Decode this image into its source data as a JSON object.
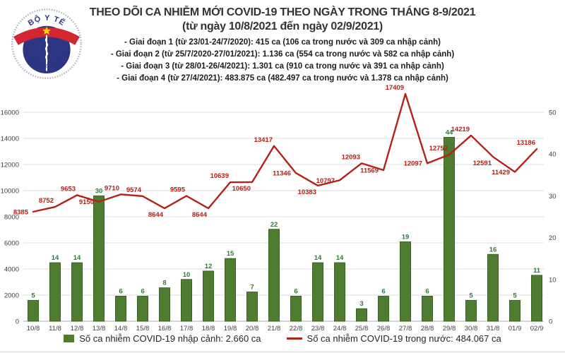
{
  "logo": {
    "top_text": "BỘ Y TẾ",
    "bottom_text": "MINISTRY OF HEALTH"
  },
  "header": {
    "title_line1": "THEO DÕI CA NHIỄM MỚI COVID-19 THEO NGÀY TRONG THÁNG 8-9/2021",
    "title_line2": "(từ ngày 10/8/2021 đến ngày 02/9/2021)",
    "phases": [
      "- Giai đoạn 1 (từ 23/01-24/7/2020): 415 ca (106 ca trong nước và 309 ca nhập cảnh)",
      "- Giai đoạn 2 (từ 25/7/2020-27/01/2021): 1.136 ca (554 ca trong nước và 582 ca nhập cảnh)",
      "- Giai đoạn 3 (từ 28/01-26/4/2021): 1.301 ca (910 ca trong nước và 391 ca nhập cảnh)",
      "- Giai đoạn 4 (từ 27/4/2021): 483.875 ca (482.497 ca trong nước và 1.378 ca nhập cảnh)"
    ]
  },
  "chart_data": {
    "type": "bar",
    "subtype": "combo-bar-line-dual-axis",
    "categories": [
      "10/8",
      "11/8",
      "12/8",
      "13/8",
      "14/8",
      "15/8",
      "16/8",
      "17/8",
      "18/8",
      "19/8",
      "20/8",
      "21/8",
      "22/8",
      "23/8",
      "24/8",
      "25/8",
      "26/8",
      "27/8",
      "28/8",
      "29/8",
      "30/8",
      "31/8",
      "01/9",
      "02/9"
    ],
    "series": [
      {
        "name": "Số ca nhiễm COVID-19 nhập cảnh",
        "type": "bar",
        "axis": "right",
        "values": [
          5,
          14,
          14,
          30,
          6,
          6,
          8,
          10,
          12,
          15,
          7,
          22,
          6,
          14,
          14,
          3,
          6,
          19,
          6,
          44,
          5,
          16,
          5,
          11
        ]
      },
      {
        "name": "Số ca nhiễm COVID-19 trong nước",
        "type": "line",
        "axis": "left",
        "values": [
          8385,
          8752,
          9653,
          9150,
          9710,
          9574,
          8644,
          9595,
          8644,
          10639,
          10650,
          13417,
          11346,
          10383,
          10797,
          12093,
          11569,
          17409,
          12097,
          12752,
          14219,
          12591,
          11429,
          13186
        ]
      }
    ],
    "left_axis": {
      "min": 0,
      "max": 16000,
      "step": 2000
    },
    "right_axis": {
      "min": 0,
      "max": 50,
      "step": 10
    },
    "grid": "horizontal",
    "legend_position": "bottom",
    "line_label_pos": [
      "left",
      "above-left",
      "above-left",
      "left",
      "above-left",
      "above-left",
      "below-left",
      "above-left",
      "below-left",
      "above-left",
      "below-left",
      "above-left",
      "left",
      "below-left",
      "left",
      "above-left",
      "left",
      "above-left",
      "left",
      "above-left",
      "above-left",
      "below-left",
      "left",
      "above-left"
    ],
    "colors": {
      "bar_fill": "#4e7c31",
      "bar_stroke": "#3c6325",
      "bar_label": "#2f7d38",
      "line": "#b52017",
      "line_label": "#b52017",
      "grid": "#dddddd",
      "baseline": "#a8a8a8",
      "axis_text": "#3f3f3f",
      "logo_navy": "#2b3582",
      "logo_red": "#d22630",
      "logo_star": "#ffd200"
    }
  },
  "legend": {
    "bars": "Số ca nhiễm COVID-19 nhập cảnh: 2.660 ca",
    "line": "Số ca nhiễm COVID-19 trong nước: 484.067 ca"
  }
}
